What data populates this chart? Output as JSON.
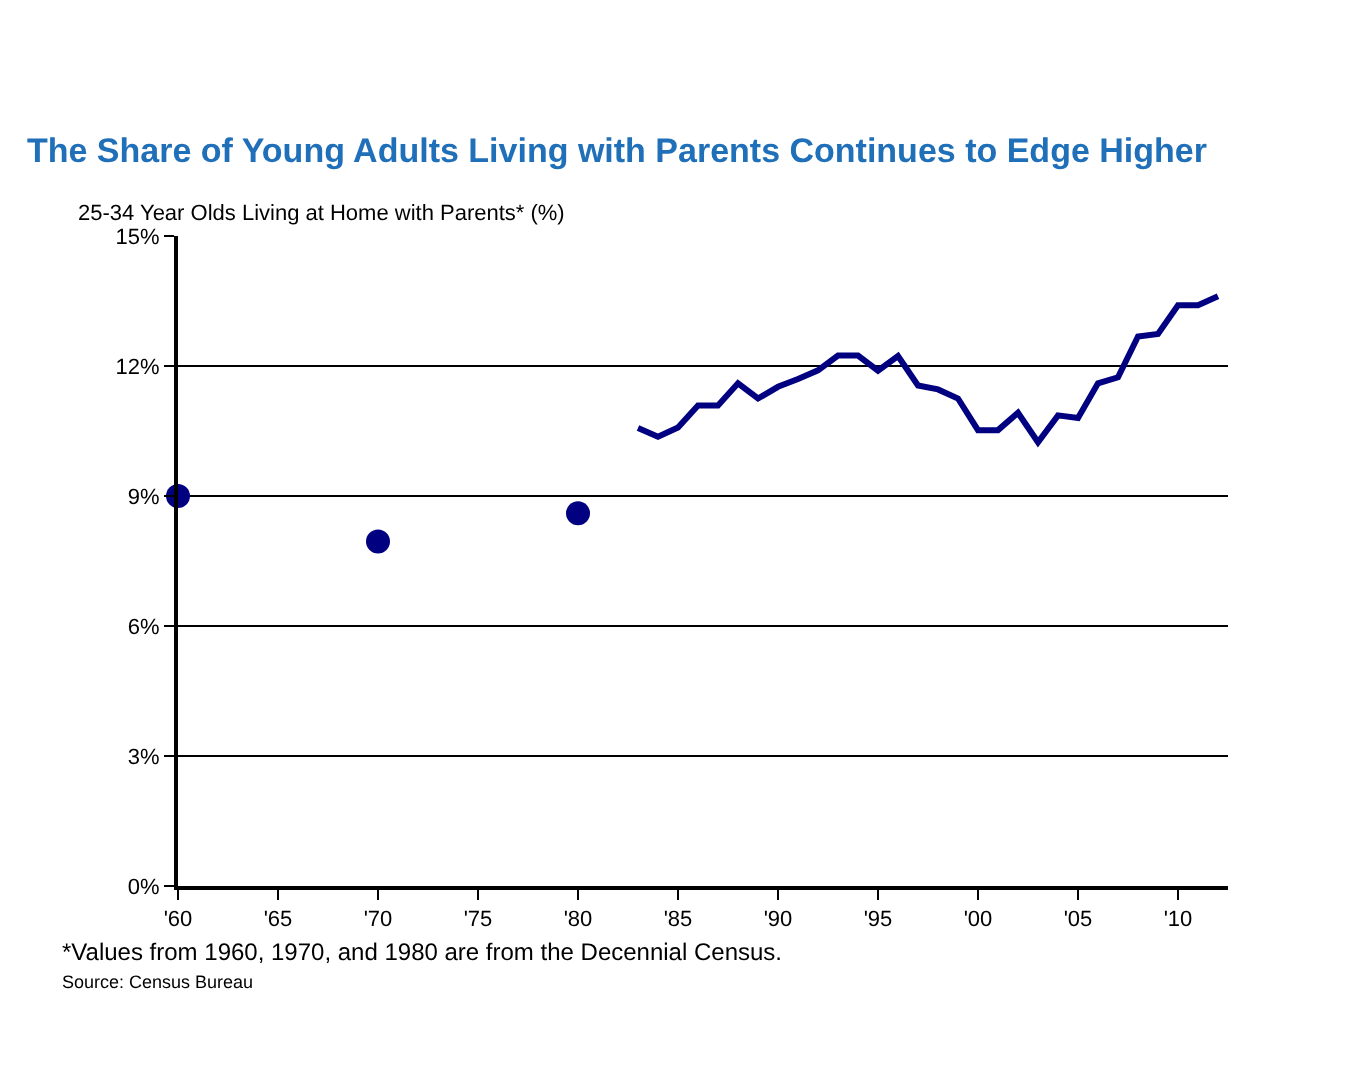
{
  "chart_data": {
    "type": "line",
    "title": "The Share of Young Adults Living with Parents Continues to Edge Higher",
    "subtitle": "25-34 Year Olds Living at Home with Parents* (%)",
    "annotations": [
      "*Values from 1960, 1970, and 1980 are from the Decennial Census.",
      "Source: Census Bureau"
    ],
    "series": [
      {
        "type": "scatter",
        "marker": "circle",
        "color": "#000080",
        "x": [
          1960,
          1970,
          1980
        ],
        "values": [
          9.0,
          7.95,
          8.6
        ]
      },
      {
        "marker": "none",
        "line_style": "solid",
        "color": "#000080",
        "x": [
          1983,
          1984,
          1985,
          1986,
          1987,
          1988,
          1989,
          1990,
          1991,
          1992,
          1993,
          1994,
          1995,
          1996,
          1997,
          1998,
          1999,
          2000,
          2001,
          2002,
          2003,
          2004,
          2005,
          2006,
          2007,
          2008,
          2009,
          2010,
          2011,
          2012
        ],
        "values": [
          10.57,
          10.37,
          10.58,
          11.09,
          11.09,
          11.6,
          11.25,
          11.52,
          11.7,
          11.9,
          12.24,
          12.24,
          11.89,
          12.23,
          11.55,
          11.46,
          11.25,
          10.52,
          10.52,
          10.92,
          10.24,
          10.86,
          10.8,
          11.6,
          11.74,
          12.68,
          12.74,
          13.4,
          13.4,
          13.61
        ]
      }
    ],
    "xlim": [
      1960,
      2012.5
    ],
    "xticks": [
      {
        "value": 1960,
        "label": "'60"
      },
      {
        "value": 1965,
        "label": "'65"
      },
      {
        "value": 1970,
        "label": "'70"
      },
      {
        "value": 1975,
        "label": "'75"
      },
      {
        "value": 1980,
        "label": "'80"
      },
      {
        "value": 1985,
        "label": "'85"
      },
      {
        "value": 1990,
        "label": "'90"
      },
      {
        "value": 1995,
        "label": "'95"
      },
      {
        "value": 2000,
        "label": "'00"
      },
      {
        "value": 2005,
        "label": "'05"
      },
      {
        "value": 2010,
        "label": "'10"
      }
    ],
    "ylim": [
      0,
      15
    ],
    "yticks": [
      {
        "value": 0,
        "label": "0%"
      },
      {
        "value": 3,
        "label": "3%"
      },
      {
        "value": 6,
        "label": "6%"
      },
      {
        "value": 9,
        "label": "9%"
      },
      {
        "value": 12,
        "label": "12%"
      },
      {
        "value": 15,
        "label": "15%"
      }
    ],
    "grid": "y"
  }
}
